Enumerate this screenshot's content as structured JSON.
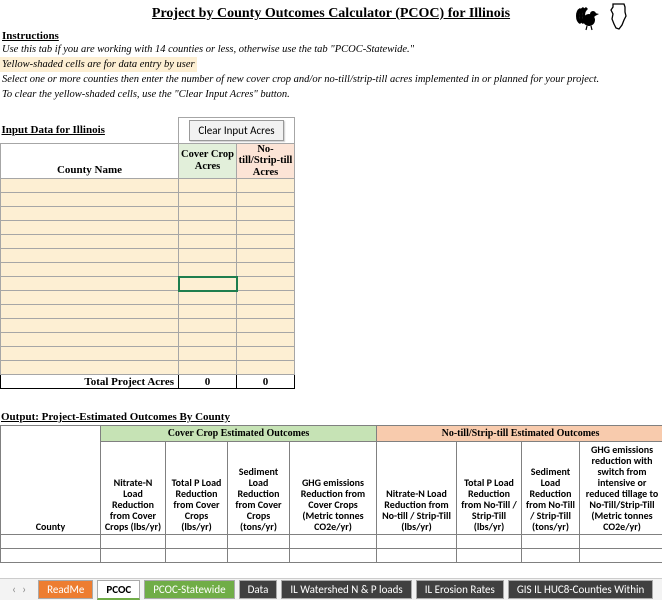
{
  "title": "Project by County Outcomes Calculator (PCOC) for Illinois",
  "instructions": {
    "header": "Instructions",
    "line1": "Use this tab if you are working with 14 counties or less, otherwise use the tab \"PCOC-Statewide.\"",
    "line2": "Yellow-shaded cells are for data entry by user",
    "line3": "Select one or more counties then enter the number of new cover crop and/or no-till/strip-till acres implemented in or planned for your project.",
    "line4": "To clear the yellow-shaded cells, use the \"Clear Input Acres\" button."
  },
  "input": {
    "section_label": "Input Data for Illinois",
    "clear_button": "Clear Input Acres",
    "county_header": "County Name",
    "cc_header": "Cover Crop Acres",
    "nt_header": "No-till/Strip-till Acres",
    "total_label": "Total Project Acres",
    "total_cc": "0",
    "total_nt": "0",
    "col_widths": {
      "county": 178,
      "cc": 58,
      "nt": 58
    },
    "row_count": 14,
    "selected_row_index": 7
  },
  "output": {
    "header": "Output: Project-Estimated Outcomes By County",
    "cc_band": "Cover Crop Estimated Outcomes",
    "nt_band": "No-till/Strip-till Estimated Outcomes",
    "county_col": "County",
    "cc_cols": [
      "Nitrate-N Load Reduction from Cover Crops (lbs/yr)",
      "Total P Load Reduction from Cover Crops (lbs/yr)",
      "Sediment Load Reduction from Cover Crops (tons/yr)",
      "GHG emissions Reduction from Cover Crops (Metric tonnes CO2e/yr)"
    ],
    "nt_cols": [
      "Nitrate-N Load Reduction from No-till / Strip-Till (lbs/yr)",
      "Total P Load Reduction from No-Till / Strip-Till (lbs/yr)",
      "Sediment Load Reduction from No-Till / Strip-Till (tons/yr)",
      "GHG emissions reduction with switch from intensive or reduced tillage to No-Till/Strip-Till (Metric tonnes CO2e/yr)"
    ]
  },
  "tabs": {
    "readme": "ReadMe",
    "pcoc": "PCOC",
    "pcoc_sw": "PCOC-Statewide",
    "data": "Data",
    "watershed": "IL Watershed N & P loads",
    "erosion": "IL Erosion Rates",
    "huc8": "GIS IL HUC8-Counties Within"
  },
  "colors": {
    "yellow": "#fdefd3",
    "cc_light": "#e2efda",
    "nt_light": "#fce4d6",
    "cc_band": "#c6e3b5",
    "nt_band": "#f8cbad",
    "selection": "#1e7e4e"
  }
}
